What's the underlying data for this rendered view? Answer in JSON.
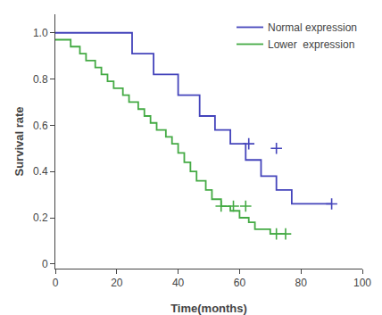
{
  "chart_data": {
    "type": "line",
    "xlabel": "Time(months)",
    "ylabel": "Survival rate",
    "xlim": [
      0,
      100
    ],
    "ylim": [
      -0.02,
      1.08
    ],
    "xticks": [
      0,
      20,
      40,
      60,
      80,
      100
    ],
    "yticks": [
      0,
      0.2,
      0.4,
      0.6,
      0.8,
      {
        "value": 1.0,
        "label": "1.0"
      }
    ],
    "grid": false,
    "legend": "upper right",
    "series": [
      {
        "name": "Normal expression",
        "color": "#4444bb",
        "type": "line",
        "x": [
          0,
          25,
          25,
          32,
          32,
          40,
          40,
          47,
          47,
          52,
          52,
          57,
          57,
          62,
          62,
          67,
          67,
          72,
          72,
          77,
          77,
          83,
          83,
          90
        ],
        "values": [
          1.0,
          1.0,
          0.91,
          0.91,
          0.82,
          0.82,
          0.73,
          0.73,
          0.64,
          0.64,
          0.58,
          0.58,
          0.52,
          0.52,
          0.45,
          0.45,
          0.38,
          0.38,
          0.32,
          0.32,
          0.26,
          0.26,
          0.26,
          0.26
        ]
      },
      {
        "name": "Lower  expression",
        "color": "#44aa44",
        "type": "line",
        "x": [
          0,
          5,
          5,
          8,
          8,
          10,
          10,
          13,
          13,
          15,
          15,
          17,
          17,
          19,
          19,
          22,
          22,
          24,
          24,
          27,
          27,
          29,
          29,
          31,
          31,
          33,
          33,
          36,
          36,
          38,
          38,
          40,
          40,
          42,
          42,
          44,
          44,
          46,
          46,
          49,
          49,
          51,
          51,
          54,
          54,
          57,
          57,
          60,
          60,
          63,
          63,
          65,
          65,
          70,
          70,
          75
        ],
        "values": [
          0.97,
          0.97,
          0.94,
          0.94,
          0.91,
          0.91,
          0.88,
          0.88,
          0.85,
          0.85,
          0.82,
          0.82,
          0.79,
          0.79,
          0.76,
          0.76,
          0.73,
          0.73,
          0.7,
          0.7,
          0.67,
          0.67,
          0.64,
          0.64,
          0.61,
          0.61,
          0.58,
          0.58,
          0.55,
          0.55,
          0.52,
          0.52,
          0.48,
          0.48,
          0.44,
          0.44,
          0.4,
          0.4,
          0.36,
          0.36,
          0.32,
          0.32,
          0.28,
          0.28,
          0.25,
          0.25,
          0.23,
          0.23,
          0.2,
          0.2,
          0.18,
          0.18,
          0.15,
          0.15,
          0.13,
          0.13
        ]
      },
      {
        "color": "#4444bb",
        "type": "scatter",
        "marker": "+",
        "x": [
          63,
          72,
          90
        ],
        "values": [
          0.52,
          0.5,
          0.26
        ]
      },
      {
        "color": "#44aa44",
        "type": "scatter",
        "marker": "+",
        "x": [
          54,
          58,
          62,
          72,
          75
        ],
        "values": [
          0.25,
          0.25,
          0.25,
          0.13,
          0.13
        ]
      }
    ]
  }
}
